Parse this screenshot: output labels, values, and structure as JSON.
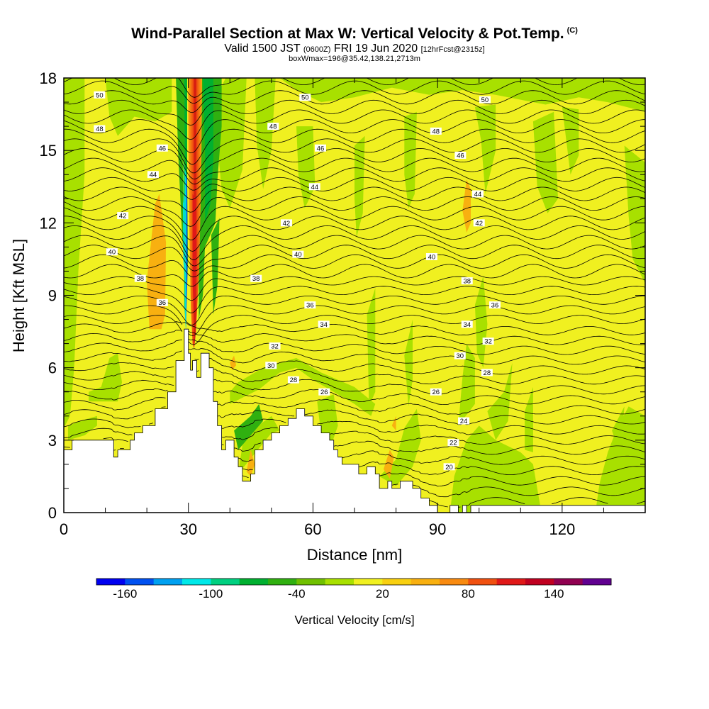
{
  "title": "Wind-Parallel Section at Max W: Vertical Velocity & Pot.Temp.",
  "title_mark": "(C)",
  "subtitle": {
    "valid": "Valid 1500 JST",
    "utc": "(0600Z)",
    "date": "FRI 19 Jun 2020",
    "fcst": "[12hrFcst@2315z]"
  },
  "subtitle2": "boxWmax=196@35.42,138.21,2713m",
  "chart_data": {
    "type": "heatmap",
    "xlabel": "Distance [nm]",
    "ylabel": "Height [Kft MSL]",
    "xlim": [
      0,
      140
    ],
    "ylim": [
      0,
      18
    ],
    "xticks": [
      0,
      30,
      60,
      90,
      120
    ],
    "yticks": [
      0,
      3,
      6,
      9,
      12,
      15,
      18
    ],
    "xtick_labels": [
      "0",
      "30",
      "60",
      "90",
      "120"
    ],
    "ytick_labels": [
      "0",
      "3",
      "6",
      "9",
      "12",
      "15",
      "18"
    ],
    "colorbar": {
      "label": "Vertical Velocity [cm/s]",
      "tick_labels": [
        "-160",
        "-100",
        "-40",
        "20",
        "80",
        "140"
      ],
      "tick_values": [
        -160,
        -100,
        -40,
        20,
        80,
        140
      ],
      "range": [
        -180,
        180
      ],
      "colors": [
        "#0000f0",
        "#0050f0",
        "#00a0f0",
        "#00e8e8",
        "#00d080",
        "#00b030",
        "#30b010",
        "#70c000",
        "#a8e000",
        "#f0f020",
        "#f8d010",
        "#f8b010",
        "#f88a10",
        "#f05010",
        "#e01818",
        "#c00020",
        "#900050",
        "#600090"
      ]
    },
    "terrain": {
      "x": [
        0,
        2,
        2,
        12,
        12,
        13,
        13,
        16,
        16,
        17,
        17,
        19,
        19,
        22,
        22,
        25,
        25,
        27,
        27,
        29,
        29,
        30,
        30,
        30.5,
        30.5,
        31,
        31,
        32,
        32,
        33,
        33,
        35,
        35,
        36,
        36,
        37,
        37,
        38,
        38,
        39,
        39,
        41,
        41,
        42,
        42,
        43,
        43,
        45,
        45,
        46,
        46,
        48,
        48,
        50,
        50,
        52,
        52,
        54,
        54,
        56,
        56,
        58,
        58,
        60,
        60,
        62,
        62,
        64,
        64,
        65,
        65,
        66,
        66,
        67,
        67,
        68,
        68,
        71,
        71,
        73,
        73,
        75,
        75,
        76,
        76,
        78,
        78,
        79,
        79,
        81,
        81,
        84,
        84,
        86,
        86,
        88,
        88,
        90,
        90,
        93,
        93,
        95,
        95,
        96,
        96,
        97,
        97,
        98,
        98,
        100,
        100,
        140
      ],
      "y": [
        2.6,
        2.6,
        3.0,
        3.0,
        2.3,
        2.3,
        2.6,
        2.6,
        3.0,
        3.0,
        3.3,
        3.3,
        3.6,
        3.6,
        4.3,
        4.3,
        5.0,
        5.0,
        6.3,
        6.3,
        7.6,
        7.6,
        6.6,
        6.6,
        5.9,
        5.9,
        6.3,
        6.3,
        5.6,
        5.6,
        6.6,
        6.6,
        6.0,
        6.0,
        4.6,
        4.6,
        3.6,
        3.6,
        2.6,
        2.6,
        3.0,
        3.0,
        2.3,
        2.3,
        1.9,
        1.9,
        1.3,
        1.3,
        1.6,
        1.6,
        2.6,
        2.6,
        3.0,
        3.0,
        3.3,
        3.3,
        3.6,
        3.6,
        3.9,
        3.9,
        4.3,
        4.3,
        4.0,
        4.0,
        3.6,
        3.6,
        3.3,
        3.3,
        3.0,
        3.0,
        2.6,
        2.6,
        2.3,
        2.3,
        2.0,
        2.0,
        2.0,
        2.0,
        1.6,
        1.6,
        1.9,
        1.9,
        1.6,
        1.6,
        1.0,
        1.0,
        1.3,
        1.3,
        1.0,
        1.0,
        1.3,
        1.3,
        1.0,
        1.0,
        0.6,
        0.6,
        0.3,
        0.3,
        0.0,
        0.0,
        0.3,
        0.3,
        0.0,
        0.0,
        0.3,
        0.3,
        0.0,
        0.0,
        0.3,
        0.3,
        0.3,
        0.3
      ]
    },
    "theta_contour_labels": [
      {
        "text": "50",
        "x": [
          8.6,
          58.1,
          101.4
        ],
        "y": [
          17.3,
          17.2,
          17.1
        ]
      },
      {
        "text": "48",
        "x": [
          8.6,
          50.4,
          89.6
        ],
        "y": [
          15.9,
          16.0,
          15.8
        ]
      },
      {
        "text": "46",
        "x": [
          23.7,
          61.8,
          95.5
        ],
        "y": [
          15.1,
          15.1,
          14.8
        ]
      },
      {
        "text": "44",
        "x": [
          21.5,
          60.4,
          99.7
        ],
        "y": [
          14.0,
          13.5,
          13.2
        ]
      },
      {
        "text": "42",
        "x": [
          14.2,
          53.6,
          100.0
        ],
        "y": [
          12.3,
          12.0,
          12.0
        ]
      },
      {
        "text": "40",
        "x": [
          11.6,
          56.4,
          88.6
        ],
        "y": [
          10.8,
          10.7,
          10.6
        ]
      },
      {
        "text": "38",
        "x": [
          18.4,
          46.3,
          97.1
        ],
        "y": [
          9.7,
          9.7,
          9.6
        ]
      },
      {
        "text": "36",
        "x": [
          23.7,
          59.3,
          103.8
        ],
        "y": [
          8.7,
          8.6,
          8.6
        ]
      },
      {
        "text": "34",
        "x": [
          62.6,
          97.1
        ],
        "y": [
          7.8,
          7.8
        ]
      },
      {
        "text": "32",
        "x": [
          50.8,
          102.2
        ],
        "y": [
          6.9,
          7.1
        ]
      },
      {
        "text": "30",
        "x": [
          49.9,
          95.4
        ],
        "y": [
          6.1,
          6.5
        ]
      },
      {
        "text": "28",
        "x": [
          55.3,
          101.9
        ],
        "y": [
          5.5,
          5.8
        ]
      },
      {
        "text": "26",
        "x": [
          62.7,
          89.6
        ],
        "y": [
          5.0,
          5.0
        ]
      },
      {
        "text": "24",
        "x": [
          96.3
        ],
        "y": [
          3.8
        ]
      },
      {
        "text": "22",
        "x": [
          93.8
        ],
        "y": [
          2.9
        ]
      },
      {
        "text": "20",
        "x": [
          92.8
        ],
        "y": [
          1.9
        ]
      }
    ]
  }
}
